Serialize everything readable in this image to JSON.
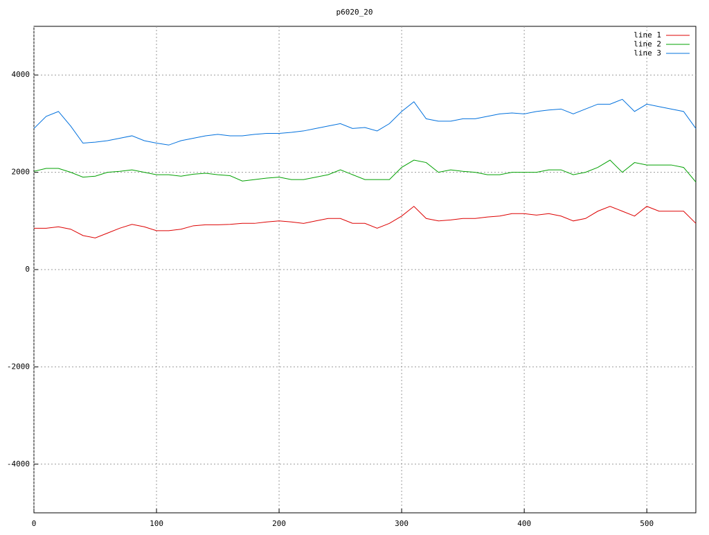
{
  "chart_data": {
    "type": "line",
    "title": "p6020_20",
    "x": [
      0,
      10,
      20,
      30,
      40,
      50,
      60,
      70,
      80,
      90,
      100,
      110,
      120,
      130,
      140,
      150,
      160,
      170,
      180,
      190,
      200,
      210,
      220,
      230,
      240,
      250,
      260,
      270,
      280,
      290,
      300,
      310,
      320,
      330,
      340,
      350,
      360,
      370,
      380,
      390,
      400,
      410,
      420,
      430,
      440,
      450,
      460,
      470,
      480,
      490,
      500,
      510,
      520,
      530,
      540
    ],
    "series": [
      {
        "name": "line 1",
        "color": "#dd0000",
        "values": [
          850,
          850,
          880,
          830,
          700,
          650,
          750,
          850,
          930,
          880,
          800,
          800,
          830,
          900,
          920,
          920,
          930,
          950,
          950,
          980,
          1000,
          980,
          950,
          1000,
          1050,
          1050,
          950,
          950,
          850,
          950,
          1100,
          1300,
          1050,
          1000,
          1020,
          1050,
          1050,
          1080,
          1100,
          1150,
          1150,
          1120,
          1150,
          1100,
          1000,
          1050,
          1200,
          1300,
          1200,
          1100,
          1300,
          1200,
          1200,
          1200,
          950
        ]
      },
      {
        "name": "line 2",
        "color": "#00a000",
        "values": [
          2020,
          2080,
          2080,
          2000,
          1900,
          1920,
          2000,
          2020,
          2050,
          2000,
          1950,
          1950,
          1920,
          1960,
          1980,
          1950,
          1930,
          1820,
          1850,
          1880,
          1900,
          1850,
          1850,
          1900,
          1950,
          2050,
          1950,
          1850,
          1850,
          1850,
          2100,
          2250,
          2200,
          2000,
          2050,
          2020,
          2000,
          1950,
          1950,
          2000,
          2000,
          2000,
          2050,
          2050,
          1950,
          2000,
          2100,
          2250,
          2000,
          2200,
          2150,
          2150,
          2150,
          2100,
          1800
        ]
      },
      {
        "name": "line 3",
        "color": "#0070dd",
        "values": [
          2900,
          3150,
          3250,
          2950,
          2600,
          2620,
          2650,
          2700,
          2750,
          2650,
          2600,
          2560,
          2650,
          2700,
          2750,
          2780,
          2750,
          2750,
          2780,
          2800,
          2800,
          2820,
          2850,
          2900,
          2950,
          3000,
          2900,
          2920,
          2850,
          3000,
          3250,
          3450,
          3100,
          3050,
          3050,
          3100,
          3100,
          3150,
          3200,
          3220,
          3200,
          3250,
          3280,
          3300,
          3200,
          3300,
          3400,
          3400,
          3500,
          3250,
          3400,
          3350,
          3300,
          3250,
          2900
        ]
      }
    ],
    "xlim": [
      0,
      540
    ],
    "ylim": [
      -5000,
      5000
    ],
    "xticks": [
      0,
      100,
      200,
      300,
      400,
      500
    ],
    "yticks": [
      -4000,
      -2000,
      0,
      2000,
      4000
    ],
    "grid": true,
    "legend": "top-right"
  }
}
